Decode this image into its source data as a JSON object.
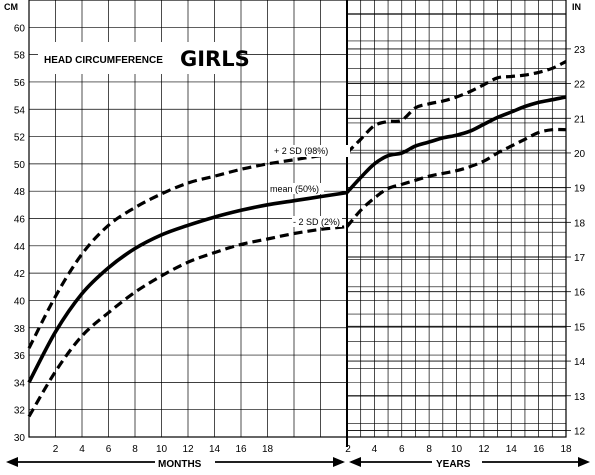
{
  "chart_data": {
    "type": "line",
    "title": "GIRLS",
    "subtitle": "HEAD CIRCUMFERENCE",
    "y_left_unit": "CM",
    "y_right_unit": "IN",
    "ylim_cm": [
      30,
      62
    ],
    "ylim_in": [
      12,
      24
    ],
    "y_left_ticks": [
      "30",
      "32",
      "34",
      "36",
      "38",
      "40",
      "42",
      "44",
      "46",
      "48",
      "50",
      "52",
      "54",
      "56",
      "58",
      "60"
    ],
    "y_right_ticks": [
      "12",
      "13",
      "14",
      "15",
      "16",
      "17",
      "18",
      "19",
      "20",
      "21",
      "22",
      "23"
    ],
    "x_months_ticks": [
      "2",
      "4",
      "6",
      "8",
      "10",
      "12",
      "14",
      "16",
      "18"
    ],
    "x_years_ticks": [
      "2",
      "4",
      "6",
      "8",
      "10",
      "12",
      "14",
      "16",
      "18"
    ],
    "x_months_label": "MONTHS",
    "x_years_label": "YEARS",
    "series_months_x": [
      0,
      2,
      4,
      6,
      8,
      10,
      12,
      14,
      16,
      18,
      20,
      22,
      24
    ],
    "series_years_x": [
      2,
      3,
      4,
      5,
      6,
      7,
      8,
      9,
      10,
      11,
      12,
      13,
      14,
      15,
      16,
      17,
      18
    ],
    "series": [
      {
        "name": "+ 2 SD (98%)",
        "style": "dashed",
        "months": [
          36.5,
          40.3,
          43.4,
          45.5,
          46.8,
          47.8,
          48.6,
          49.1,
          49.6,
          50.0,
          50.3,
          50.6,
          50.8
        ],
        "years": [
          50.8,
          51.8,
          52.8,
          53.1,
          53.2,
          54.1,
          54.4,
          54.6,
          54.9,
          55.3,
          55.8,
          56.3,
          56.4,
          56.5,
          56.7,
          57.0,
          57.5
        ]
      },
      {
        "name": "mean (50%)",
        "style": "solid",
        "months": [
          34.0,
          37.7,
          40.5,
          42.4,
          43.8,
          44.8,
          45.5,
          46.1,
          46.6,
          47.0,
          47.3,
          47.6,
          47.9
        ],
        "years": [
          47.9,
          49.0,
          50.0,
          50.6,
          50.8,
          51.3,
          51.6,
          51.9,
          52.1,
          52.4,
          52.9,
          53.4,
          53.8,
          54.2,
          54.5,
          54.7,
          54.9
        ]
      },
      {
        "name": "- 2 SD (2%)",
        "style": "dashed",
        "months": [
          31.5,
          34.8,
          37.4,
          39.1,
          40.6,
          41.8,
          42.8,
          43.5,
          44.1,
          44.5,
          44.9,
          45.2,
          45.4
        ],
        "years": [
          45.4,
          46.6,
          47.5,
          48.2,
          48.5,
          48.8,
          49.1,
          49.3,
          49.5,
          49.8,
          50.2,
          50.8,
          51.3,
          51.8,
          52.3,
          52.5,
          52.5
        ]
      }
    ],
    "annotations": {
      "upper": "+ 2 SD (98%)",
      "mean": "mean (50%)",
      "lower": "- 2 SD (2%)"
    },
    "grid": true
  }
}
